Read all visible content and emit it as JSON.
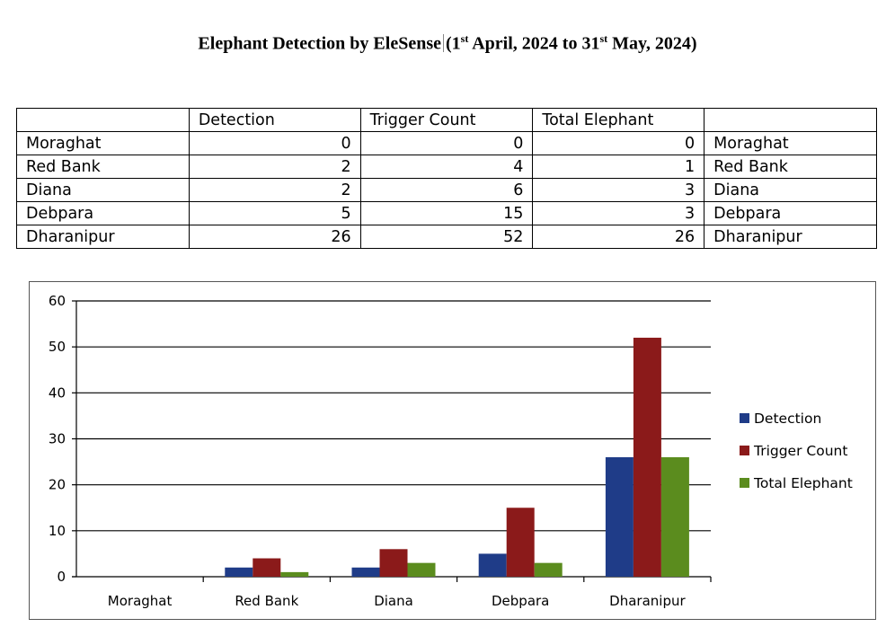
{
  "title": {
    "main": "Elephant Detection by EleSense",
    "date_open": "(1",
    "date_sup1": "st",
    "date_mid": " April, 2024 to 31",
    "date_sup2": "st",
    "date_close": " May, 2024)"
  },
  "table": {
    "headers": [
      "",
      "Detection",
      "Trigger Count",
      "Total Elephant",
      ""
    ],
    "rows": [
      [
        "Moraghat",
        "0",
        "0",
        "0",
        "Moraghat"
      ],
      [
        "Red Bank",
        "2",
        "4",
        "1",
        "Red Bank"
      ],
      [
        "Diana",
        "2",
        "6",
        "3",
        "Diana"
      ],
      [
        "Debpara",
        "5",
        "15",
        "3",
        "Debpara"
      ],
      [
        "Dharanipur",
        "26",
        "52",
        "26",
        "Dharanipur"
      ]
    ]
  },
  "chart_data": {
    "type": "bar",
    "categories": [
      "Moraghat",
      "Red Bank",
      "Diana",
      "Debpara",
      "Dharanipur"
    ],
    "series": [
      {
        "name": "Detection",
        "values": [
          0,
          2,
          2,
          5,
          26
        ],
        "color": "#1f3c88"
      },
      {
        "name": "Trigger Count",
        "values": [
          0,
          4,
          6,
          15,
          52
        ],
        "color": "#8b1a1a"
      },
      {
        "name": "Total Elephant",
        "values": [
          0,
          1,
          3,
          3,
          26
        ],
        "color": "#5b8c1e"
      }
    ],
    "yticks": [
      "0",
      "10",
      "20",
      "30",
      "40",
      "50",
      "60"
    ],
    "ylim": [
      0,
      60
    ],
    "grid": true,
    "legend": "right"
  }
}
